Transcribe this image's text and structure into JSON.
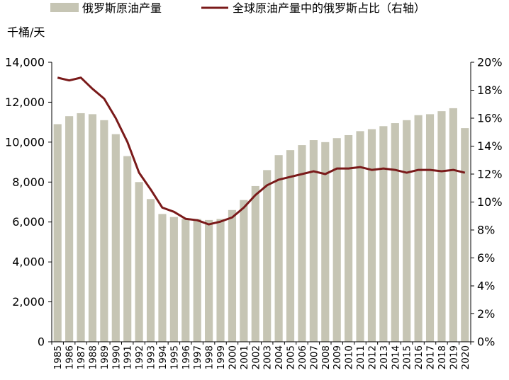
{
  "chart_data": {
    "type": "bar",
    "categories": [
      "1985",
      "1986",
      "1987",
      "1988",
      "1989",
      "1990",
      "1991",
      "1992",
      "1993",
      "1994",
      "1995",
      "1996",
      "1997",
      "1998",
      "1999",
      "2000",
      "2001",
      "2002",
      "2003",
      "2004",
      "2005",
      "2006",
      "2007",
      "2008",
      "2009",
      "2010",
      "2011",
      "2012",
      "2013",
      "2014",
      "2015",
      "2016",
      "2017",
      "2018",
      "2019",
      "2020"
    ],
    "ylabel": "千桶/天",
    "ylim": [
      0,
      14000
    ],
    "y_ticks": [
      0,
      2000,
      4000,
      6000,
      8000,
      10000,
      12000,
      14000
    ],
    "y_tick_labels": [
      "0",
      "2,000",
      "4,000",
      "6,000",
      "8,000",
      "10,000",
      "12,000",
      "14,000"
    ],
    "y2lim": [
      0,
      20
    ],
    "y2_ticks": [
      0,
      2,
      4,
      6,
      8,
      10,
      12,
      14,
      16,
      18,
      20
    ],
    "y2_tick_labels": [
      "0%",
      "2%",
      "4%",
      "6%",
      "8%",
      "10%",
      "12%",
      "14%",
      "16%",
      "18%",
      "20%"
    ],
    "grid": false,
    "legend_position": "top",
    "series": [
      {
        "name": "俄罗斯原油产量",
        "type": "bar",
        "axis": "left",
        "color": "#c6c5b4",
        "values": [
          10900,
          11300,
          11450,
          11400,
          11100,
          10400,
          9300,
          8000,
          7150,
          6400,
          6250,
          6150,
          6150,
          6100,
          6150,
          6600,
          7100,
          7800,
          8600,
          9350,
          9600,
          9850,
          10100,
          10000,
          10200,
          10350,
          10550,
          10650,
          10800,
          10950,
          11100,
          11350,
          11400,
          11550,
          11700,
          10700
        ]
      },
      {
        "name": "全球原油产量中的俄罗斯占比（右轴）",
        "type": "line",
        "axis": "right",
        "color": "#7a1a1a",
        "values": [
          18.9,
          18.7,
          18.9,
          18.1,
          17.4,
          16.0,
          14.3,
          12.1,
          10.9,
          9.6,
          9.3,
          8.8,
          8.7,
          8.4,
          8.6,
          8.9,
          9.6,
          10.5,
          11.2,
          11.6,
          11.8,
          12.0,
          12.2,
          12.0,
          12.4,
          12.4,
          12.5,
          12.3,
          12.4,
          12.3,
          12.1,
          12.3,
          12.3,
          12.2,
          12.3,
          12.1
        ]
      }
    ]
  }
}
